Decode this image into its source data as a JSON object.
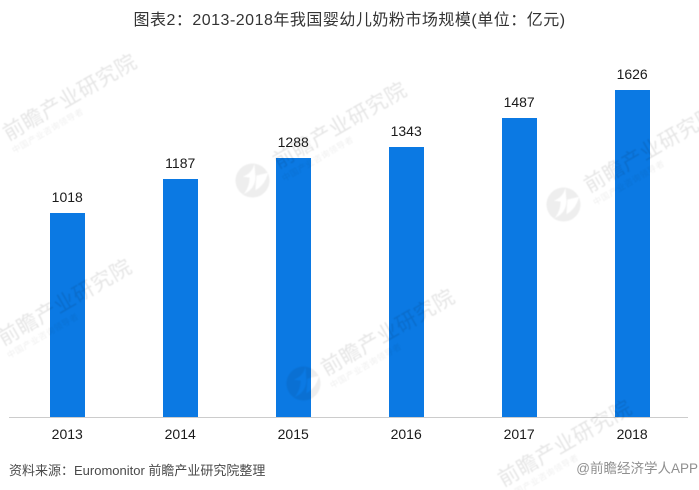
{
  "chart_data": {
    "type": "bar",
    "title": "图表2：2013-2018年我国婴幼儿奶粉市场规模(单位：亿元)",
    "categories": [
      "2013",
      "2014",
      "2015",
      "2016",
      "2017",
      "2018"
    ],
    "values": [
      1018,
      1187,
      1288,
      1343,
      1487,
      1626
    ],
    "xlabel": "",
    "ylabel": "",
    "ylim": [
      0,
      2000
    ],
    "grid": false,
    "legend": null,
    "value_labels_shown": true,
    "bar_color": "#0b79e3",
    "axis_line_color": "#cccccc",
    "title_color": "#333333",
    "value_label_color": "#1a1a1a",
    "tick_label_color": "#1a1a1a"
  },
  "footer": {
    "source_text": "资料来源：Euromonitor 前瞻产业研究院整理",
    "source_color": "#4a4a4a",
    "credit_text": "@前瞻经济学人APP",
    "credit_color": "#8f8f8f"
  },
  "watermark": {
    "brand_text": "前瞻产业研究院",
    "tagline_text": "中国产业咨询领导者",
    "logo_icon": "qianzhan-bird-logo",
    "text_color": "rgba(0,0,0,0.10)",
    "tagline_color": "rgba(0,0,0,0.07)",
    "disc_color": "rgba(0,0,0,0.068)"
  }
}
